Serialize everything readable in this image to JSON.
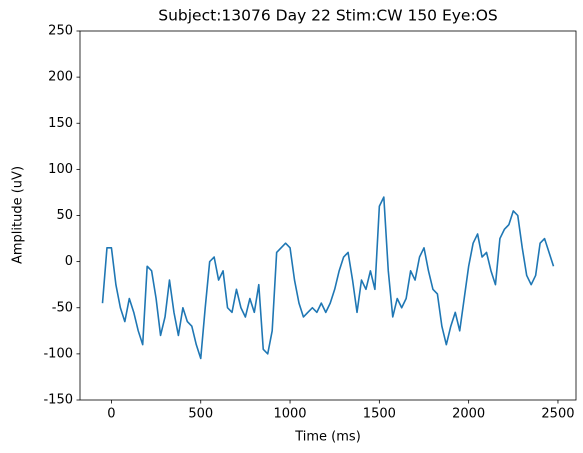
{
  "chart_data": {
    "type": "line",
    "title": "Subject:13076 Day 22 Stim:CW 150 Eye:OS",
    "xlabel": "Time (ms)",
    "ylabel": "Amplitude (uV)",
    "x": [
      -50,
      -25,
      0,
      25,
      50,
      75,
      100,
      125,
      150,
      175,
      200,
      225,
      250,
      275,
      300,
      325,
      350,
      375,
      400,
      425,
      450,
      475,
      500,
      525,
      550,
      575,
      600,
      625,
      650,
      675,
      700,
      725,
      750,
      775,
      800,
      825,
      850,
      875,
      900,
      925,
      950,
      975,
      1000,
      1025,
      1050,
      1075,
      1100,
      1125,
      1150,
      1175,
      1200,
      1225,
      1250,
      1275,
      1300,
      1325,
      1350,
      1375,
      1400,
      1425,
      1450,
      1475,
      1500,
      1525,
      1550,
      1575,
      1600,
      1625,
      1650,
      1675,
      1700,
      1725,
      1750,
      1775,
      1800,
      1825,
      1850,
      1875,
      1900,
      1925,
      1950,
      1975,
      2000,
      2025,
      2050,
      2075,
      2100,
      2125,
      2150,
      2175,
      2200,
      2225,
      2250,
      2275,
      2300,
      2325,
      2350,
      2375,
      2400,
      2425,
      2450,
      2475
    ],
    "series": [
      {
        "name": "Amplitude",
        "color": "#1f77b4",
        "values": [
          -45,
          15,
          15,
          -25,
          -50,
          -65,
          -40,
          -55,
          -75,
          -90,
          -5,
          -10,
          -40,
          -80,
          -60,
          -20,
          -55,
          -80,
          -50,
          -65,
          -70,
          -90,
          -105,
          -50,
          0,
          5,
          -20,
          -10,
          -50,
          -55,
          -30,
          -50,
          -60,
          -40,
          -55,
          -25,
          -95,
          -100,
          -75,
          10,
          15,
          20,
          15,
          -20,
          -45,
          -60,
          -55,
          -50,
          -55,
          -45,
          -55,
          -45,
          -30,
          -10,
          5,
          10,
          -20,
          -55,
          -20,
          -30,
          -10,
          -30,
          60,
          70,
          -10,
          -60,
          -40,
          -50,
          -40,
          -10,
          -20,
          5,
          15,
          -10,
          -30,
          -35,
          -70,
          -90,
          -70,
          -55,
          -75,
          -40,
          -5,
          20,
          30,
          5,
          10,
          -10,
          -25,
          25,
          35,
          40,
          55,
          50,
          15,
          -15,
          -25,
          -15,
          20,
          25,
          10,
          -5
        ]
      }
    ],
    "xlim": [
      -176,
      2601
    ],
    "xticks": [
      0,
      500,
      1000,
      1500,
      2000,
      2500
    ],
    "ylim": [
      -150,
      250
    ],
    "yticks": [
      -150,
      -100,
      -50,
      0,
      50,
      100,
      150,
      200,
      250
    ],
    "grid": false
  }
}
